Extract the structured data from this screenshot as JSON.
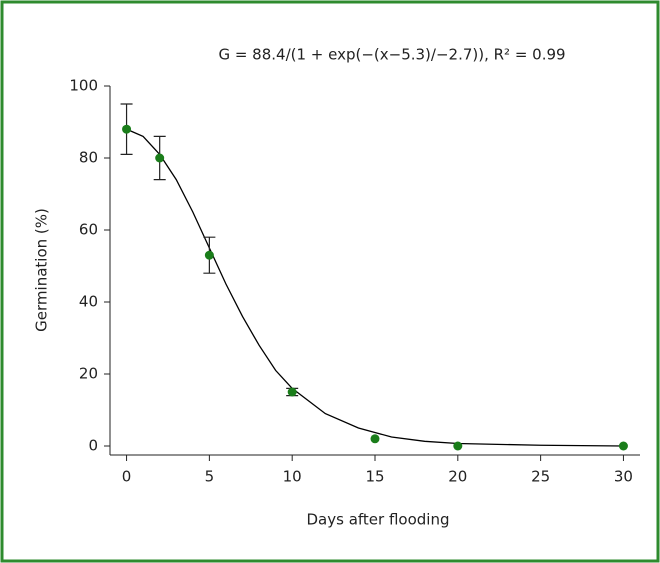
{
  "chart_data": {
    "type": "scatter",
    "title": "G = 88.4/(1 + exp(−(x−5.3)/−2.7)), R² = 0.99",
    "x_label": "Days after flooding",
    "y_label": "Germination (%)",
    "series": [
      {
        "color": "#1a7d1a",
        "x": [
          0,
          2,
          5,
          10,
          15,
          20,
          30
        ],
        "values": [
          88,
          80,
          53,
          15,
          2,
          0,
          0
        ],
        "errors": [
          7,
          6,
          5,
          1,
          0,
          0,
          0
        ]
      }
    ],
    "fit": {
      "color": "#000000",
      "x": [
        0,
        1,
        2,
        3,
        4,
        5,
        6,
        7,
        8,
        9,
        10,
        12,
        14,
        16,
        18,
        20,
        25,
        30
      ],
      "values": [
        88,
        86,
        81,
        74,
        65,
        55,
        45,
        36,
        28,
        21,
        16,
        9,
        5,
        2.5,
        1.3,
        0.7,
        0.2,
        0
      ]
    },
    "xlim": [
      -1,
      31
    ],
    "ylim": [
      -2.5,
      100
    ],
    "xticks": [
      0,
      5,
      10,
      15,
      20,
      25,
      30
    ],
    "yticks": [
      0,
      20,
      40,
      60,
      80,
      100
    ],
    "border_color": "#2e8b2e"
  }
}
